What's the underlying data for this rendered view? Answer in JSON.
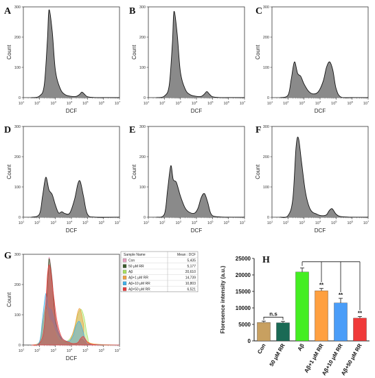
{
  "panel_letters": [
    "A",
    "B",
    "C",
    "D",
    "E",
    "F",
    "G",
    "H"
  ],
  "histogram_axes": {
    "xlabel": "DCF",
    "ylabel": "Count",
    "yticks": [
      "0",
      "100",
      "200",
      "300"
    ],
    "xticks": [
      "10",
      "10",
      "10",
      "10",
      "10",
      "10",
      "10"
    ],
    "xtick_exponents": [
      "1",
      "2",
      "3",
      "4",
      "5",
      "6",
      "7"
    ]
  },
  "overlay_legend": {
    "header_name": "Sample Name",
    "header_mean": "Mean : DCF",
    "rows": [
      {
        "name": "Con",
        "mean": "5,435",
        "color": "#e8a0c0"
      },
      {
        "name": "50 μM RR",
        "mean": "5,177",
        "color": "#3a5a2a"
      },
      {
        "name": "Aβ",
        "mean": "20,610",
        "color": "#a8e060"
      },
      {
        "name": "Aβ+1 μM RR",
        "mean": "14,739",
        "color": "#f0a040"
      },
      {
        "name": "Aβ+10 μM RR",
        "mean": "10,803",
        "color": "#40b0e8"
      },
      {
        "name": "Aβ+50 μM RR",
        "mean": "6,521",
        "color": "#e83a3a"
      }
    ]
  },
  "bar_axes": {
    "ylabel": "Floresence intensity (a.u.)",
    "yticks": [
      "0",
      "5000",
      "10000",
      "15000",
      "20000",
      "25000"
    ],
    "ns_label": "n.s"
  },
  "chart_data": [
    {
      "type": "area",
      "panel": "A",
      "xlabel": "DCF",
      "ylabel": "Count",
      "x_scale": "log",
      "xlim": [
        10,
        10000000
      ],
      "ylim": [
        0,
        300
      ],
      "x": [
        1.5,
        2.0,
        2.3,
        2.5,
        2.6,
        2.8,
        3.0,
        3.3,
        3.6,
        4.0,
        4.3,
        4.5,
        4.65,
        4.8,
        5.0,
        5.5,
        6.0,
        7.0
      ],
      "y": [
        0,
        5,
        40,
        190,
        290,
        220,
        90,
        30,
        10,
        4,
        4,
        10,
        18,
        12,
        3,
        0,
        0,
        0
      ]
    },
    {
      "type": "area",
      "panel": "B",
      "xlabel": "DCF",
      "ylabel": "Count",
      "x_scale": "log",
      "xlim": [
        10,
        10000000
      ],
      "ylim": [
        0,
        300
      ],
      "x": [
        1.5,
        2.0,
        2.3,
        2.5,
        2.6,
        2.8,
        3.0,
        3.3,
        3.6,
        4.0,
        4.3,
        4.5,
        4.65,
        4.8,
        5.0,
        5.5,
        6.0,
        7.0
      ],
      "y": [
        0,
        5,
        40,
        180,
        285,
        210,
        85,
        28,
        10,
        4,
        4,
        12,
        20,
        12,
        3,
        0,
        0,
        0
      ]
    },
    {
      "type": "area",
      "panel": "C",
      "xlabel": "DCF",
      "ylabel": "Count",
      "x_scale": "log",
      "xlim": [
        10,
        10000000
      ],
      "ylim": [
        0,
        300
      ],
      "x": [
        1.5,
        2.0,
        2.2,
        2.4,
        2.6,
        2.8,
        3.0,
        3.3,
        3.6,
        3.9,
        4.2,
        4.4,
        4.6,
        4.8,
        5.0,
        5.3,
        6.0,
        7.0
      ],
      "y": [
        0,
        8,
        60,
        118,
        80,
        70,
        45,
        20,
        12,
        20,
        55,
        100,
        118,
        90,
        30,
        2,
        0,
        0
      ]
    },
    {
      "type": "area",
      "panel": "D",
      "xlabel": "DCF",
      "ylabel": "Count",
      "x_scale": "log",
      "xlim": [
        10,
        10000000
      ],
      "ylim": [
        0,
        300
      ],
      "x": [
        1.5,
        2.0,
        2.2,
        2.4,
        2.6,
        2.8,
        3.0,
        3.2,
        3.4,
        3.6,
        3.9,
        4.2,
        4.4,
        4.55,
        4.75,
        5.0,
        5.5,
        7.0
      ],
      "y": [
        0,
        10,
        70,
        132,
        90,
        75,
        40,
        14,
        18,
        12,
        14,
        60,
        110,
        118,
        70,
        10,
        0,
        0
      ]
    },
    {
      "type": "area",
      "panel": "E",
      "xlabel": "DCF",
      "ylabel": "Count",
      "x_scale": "log",
      "xlim": [
        10,
        10000000
      ],
      "ylim": [
        0,
        300
      ],
      "x": [
        1.5,
        2.0,
        2.2,
        2.4,
        2.55,
        2.75,
        3.0,
        3.3,
        3.6,
        3.9,
        4.1,
        4.3,
        4.5,
        4.7,
        4.9,
        5.2,
        6.0,
        7.0
      ],
      "y": [
        0,
        10,
        90,
        170,
        125,
        115,
        70,
        30,
        15,
        14,
        30,
        65,
        78,
        50,
        12,
        2,
        0,
        0
      ]
    },
    {
      "type": "area",
      "panel": "F",
      "xlabel": "DCF",
      "ylabel": "Count",
      "x_scale": "log",
      "xlim": [
        10,
        10000000
      ],
      "ylim": [
        0,
        300
      ],
      "x": [
        1.5,
        2.0,
        2.3,
        2.5,
        2.65,
        2.85,
        3.1,
        3.4,
        3.8,
        4.1,
        4.4,
        4.55,
        4.75,
        5.0,
        5.3,
        6.0,
        7.0
      ],
      "y": [
        0,
        5,
        60,
        230,
        262,
        180,
        80,
        25,
        10,
        5,
        8,
        20,
        28,
        10,
        2,
        0,
        0
      ]
    },
    {
      "type": "area",
      "panel": "G",
      "xlabel": "DCF",
      "ylabel": "Count",
      "x_scale": "log",
      "xlim": [
        10,
        10000000
      ],
      "ylim": [
        0,
        300
      ],
      "series": [
        {
          "name": "Con",
          "x": [
            1.5,
            2.0,
            2.3,
            2.5,
            2.6,
            2.8,
            3.0,
            3.3,
            3.6,
            4.0,
            4.3,
            4.5,
            4.65,
            4.8,
            5.0,
            5.5,
            7.0
          ],
          "y": [
            0,
            5,
            40,
            190,
            290,
            220,
            90,
            30,
            10,
            4,
            4,
            10,
            18,
            12,
            3,
            0,
            0
          ]
        },
        {
          "name": "50 μM RR",
          "x": [
            1.5,
            2.0,
            2.3,
            2.5,
            2.6,
            2.8,
            3.0,
            3.3,
            3.6,
            4.0,
            4.3,
            4.5,
            4.65,
            4.8,
            5.0,
            5.5,
            7.0
          ],
          "y": [
            0,
            5,
            40,
            180,
            285,
            210,
            85,
            28,
            10,
            4,
            4,
            12,
            20,
            12,
            3,
            0,
            0
          ]
        },
        {
          "name": "Aβ",
          "x": [
            1.5,
            2.0,
            2.2,
            2.4,
            2.6,
            2.8,
            3.0,
            3.3,
            3.6,
            3.9,
            4.2,
            4.4,
            4.6,
            4.8,
            5.0,
            5.3,
            7.0
          ],
          "y": [
            0,
            8,
            60,
            118,
            80,
            70,
            45,
            20,
            12,
            20,
            55,
            100,
            118,
            90,
            30,
            2,
            0
          ]
        },
        {
          "name": "Aβ+1 μM RR",
          "x": [
            1.5,
            2.0,
            2.2,
            2.4,
            2.6,
            2.8,
            3.0,
            3.2,
            3.4,
            3.6,
            3.9,
            4.2,
            4.4,
            4.55,
            4.75,
            5.0,
            7.0
          ],
          "y": [
            0,
            10,
            70,
            132,
            90,
            75,
            40,
            14,
            18,
            12,
            14,
            60,
            110,
            118,
            70,
            10,
            0
          ]
        },
        {
          "name": "Aβ+10 μM RR",
          "x": [
            1.5,
            2.0,
            2.2,
            2.4,
            2.55,
            2.75,
            3.0,
            3.3,
            3.6,
            3.9,
            4.1,
            4.3,
            4.5,
            4.7,
            4.9,
            5.2,
            7.0
          ],
          "y": [
            0,
            10,
            90,
            170,
            125,
            115,
            70,
            30,
            15,
            14,
            30,
            65,
            78,
            50,
            12,
            2,
            0
          ]
        },
        {
          "name": "Aβ+50 μM RR",
          "x": [
            1.5,
            2.0,
            2.3,
            2.5,
            2.65,
            2.85,
            3.1,
            3.4,
            3.8,
            4.1,
            4.4,
            4.55,
            4.75,
            5.0,
            5.3,
            6.0,
            7.0
          ],
          "y": [
            0,
            5,
            60,
            230,
            262,
            180,
            80,
            25,
            10,
            5,
            8,
            20,
            28,
            10,
            2,
            0,
            0
          ]
        }
      ]
    },
    {
      "type": "bar",
      "panel": "H",
      "ylabel": "Floresence intensity (a.u.)",
      "ylim": [
        0,
        25000
      ],
      "categories": [
        "Con",
        "50 μM RR",
        "Aβ",
        "Aβ+1 μM RR",
        "Aβ+10 μM RR",
        "Aβ+50 μM RR"
      ],
      "values": [
        5600,
        5500,
        20900,
        15200,
        11500,
        6900
      ],
      "errors": [
        400,
        400,
        1200,
        700,
        1400,
        500
      ],
      "colors": [
        "#c8a060",
        "#1a6a55",
        "#44ee22",
        "#ffa040",
        "#4a9df8",
        "#f03a3a"
      ],
      "significance": [
        "",
        "",
        "",
        "**",
        "**",
        "**"
      ]
    }
  ]
}
